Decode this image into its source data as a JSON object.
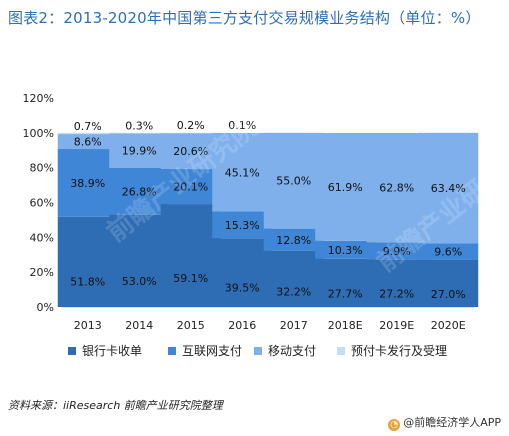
{
  "title": "图表2：2013-2020年中国第三方支付交易规模业务结构（单位：%）",
  "source": "资料来源：iiResearch 前瞻产业研究院整理",
  "brand": "@前瞻经济学人APP",
  "watermark": "前瞻产业研究院",
  "chart_data": {
    "type": "bar",
    "stacked": true,
    "categories": [
      "2013",
      "2014",
      "2015",
      "2016",
      "2017",
      "2018E",
      "2019E",
      "2020E"
    ],
    "y_ticks": [
      "0%",
      "20%",
      "40%",
      "60%",
      "80%",
      "100%",
      "120%"
    ],
    "ylim": [
      0,
      120
    ],
    "series": [
      {
        "name": "银行卡收单",
        "color": "#2e6db4",
        "values": [
          51.8,
          53.0,
          59.1,
          39.5,
          32.2,
          27.7,
          27.2,
          27.0
        ],
        "labels": [
          "51.8%",
          "53.0%",
          "59.1%",
          "39.5%",
          "32.2%",
          "27.7%",
          "27.2%",
          "27.0%"
        ]
      },
      {
        "name": "互联网支付",
        "color": "#3f86d6",
        "values": [
          38.9,
          26.8,
          20.1,
          15.3,
          12.8,
          10.3,
          9.9,
          9.6
        ],
        "labels": [
          "38.9%",
          "26.8%",
          "20.1%",
          "15.3%",
          "12.8%",
          "10.3%",
          "9.9%",
          "9.6%"
        ]
      },
      {
        "name": "移动支付",
        "color": "#7fb0ec",
        "values": [
          8.6,
          19.9,
          20.6,
          45.1,
          55.0,
          61.9,
          62.8,
          63.4
        ],
        "labels": [
          "8.6%",
          "19.9%",
          "20.6%",
          "45.1%",
          "55.0%",
          "61.9%",
          "62.8%",
          "63.4%"
        ]
      },
      {
        "name": "预付卡发行及受理",
        "color": "#c6dbf4",
        "values": [
          0.7,
          0.3,
          0.2,
          0.1,
          0,
          0,
          0,
          0
        ],
        "labels": [
          "0.7%",
          "0.3%",
          "0.2%",
          "0.1%",
          "",
          "",
          "",
          ""
        ]
      }
    ],
    "legend_position": "bottom",
    "grid": false
  }
}
